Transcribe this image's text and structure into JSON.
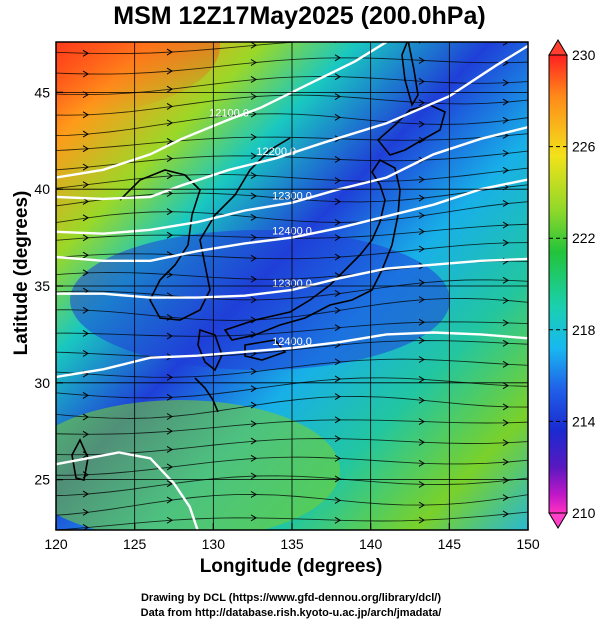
{
  "title": "MSM 12Z17May2025 (200.0hPa)",
  "xlabel": "Longitude (degrees)",
  "ylabel": "Latitude  (degrees)",
  "credits": {
    "line1": "Drawing by DCL (https://www.gfd-dennou.org/library/dcl/)",
    "line2": "Data from http://database.rish.kyoto-u.ac.jp/arch/jmadata/"
  },
  "map": {
    "lon_range": [
      120,
      150
    ],
    "lat_range": [
      22.4,
      47.6
    ],
    "lon_ticks": [
      "120",
      "125",
      "130",
      "135",
      "140",
      "145",
      "150"
    ],
    "lat_ticks": [
      "25",
      "30",
      "35",
      "40",
      "45"
    ],
    "grid": true,
    "colors": {
      "cold": "#1f3fd8",
      "mid": "#19c8c0",
      "warm": "#7ad12a",
      "hot": "#ff3b1a",
      "coast": "#000000",
      "contour": "#ffffff"
    }
  },
  "colorbar": {
    "range": [
      210,
      230
    ],
    "labels": [
      "230",
      "226",
      "222",
      "218",
      "214",
      "210"
    ],
    "stops": [
      "#ff2020",
      "#ff8a1a",
      "#f2e21a",
      "#8fd82a",
      "#22c43a",
      "#1ad0b0",
      "#18b8f0",
      "#2060e8",
      "#1a2ad0",
      "#5a18c0",
      "#c018c8",
      "#ff30c0"
    ]
  },
  "contours": [
    {
      "label": "12100.0",
      "points": [
        [
          120,
          40.6
        ],
        [
          123,
          41.0
        ],
        [
          126,
          41.8
        ],
        [
          128,
          42.6
        ],
        [
          131,
          43.6
        ],
        [
          133,
          44.2
        ],
        [
          136,
          45.4
        ],
        [
          139,
          46.6
        ],
        [
          141,
          47.6
        ]
      ]
    },
    {
      "label": "12200.0",
      "points": [
        [
          120,
          39.6
        ],
        [
          123,
          39.5
        ],
        [
          126,
          39.6
        ],
        [
          128,
          40.2
        ],
        [
          131,
          41.0
        ],
        [
          134,
          41.6
        ],
        [
          137,
          42.4
        ],
        [
          141,
          43.4
        ],
        [
          145,
          44.8
        ],
        [
          148,
          46.4
        ],
        [
          150,
          47.4
        ]
      ]
    },
    {
      "label": "12300.0",
      "points": [
        [
          120,
          37.8
        ],
        [
          123,
          37.7
        ],
        [
          126,
          37.9
        ],
        [
          129,
          38.3
        ],
        [
          132,
          38.9
        ],
        [
          135,
          39.3
        ],
        [
          138,
          40.0
        ],
        [
          141,
          40.6
        ],
        [
          144,
          41.8
        ],
        [
          147,
          42.6
        ],
        [
          150,
          43.2
        ]
      ]
    },
    {
      "label": "12400.0",
      "points": [
        [
          120,
          36.5
        ],
        [
          123,
          36.3
        ],
        [
          126,
          36.3
        ],
        [
          129,
          36.8
        ],
        [
          132,
          37.2
        ],
        [
          135,
          37.5
        ],
        [
          138,
          38.0
        ],
        [
          141,
          38.6
        ],
        [
          144,
          39.2
        ],
        [
          147,
          40.0
        ],
        [
          150,
          40.5
        ]
      ]
    },
    {
      "label": "12300.0",
      "points": [
        [
          120,
          34.6
        ],
        [
          123,
          34.6
        ],
        [
          126,
          34.4
        ],
        [
          129,
          34.4
        ],
        [
          132,
          34.5
        ],
        [
          135,
          34.8
        ],
        [
          138,
          35.4
        ],
        [
          141,
          35.9
        ],
        [
          144,
          36.1
        ],
        [
          147,
          36.3
        ],
        [
          150,
          36.4
        ]
      ]
    },
    {
      "label": "12400.0",
      "points": [
        [
          120,
          30.3
        ],
        [
          123,
          30.7
        ],
        [
          126,
          31.3
        ],
        [
          129,
          31.4
        ],
        [
          132,
          31.6
        ],
        [
          135,
          31.8
        ],
        [
          138,
          32.1
        ],
        [
          141,
          32.5
        ],
        [
          144,
          32.6
        ],
        [
          147,
          32.5
        ],
        [
          150,
          32.3
        ]
      ]
    },
    {
      "label": "",
      "points": [
        [
          120,
          25.8
        ],
        [
          122,
          26.1
        ],
        [
          124,
          26.4
        ],
        [
          126,
          26.1
        ],
        [
          127.5,
          24.8
        ],
        [
          128.5,
          23.6
        ],
        [
          129,
          22.4
        ]
      ]
    }
  ]
}
